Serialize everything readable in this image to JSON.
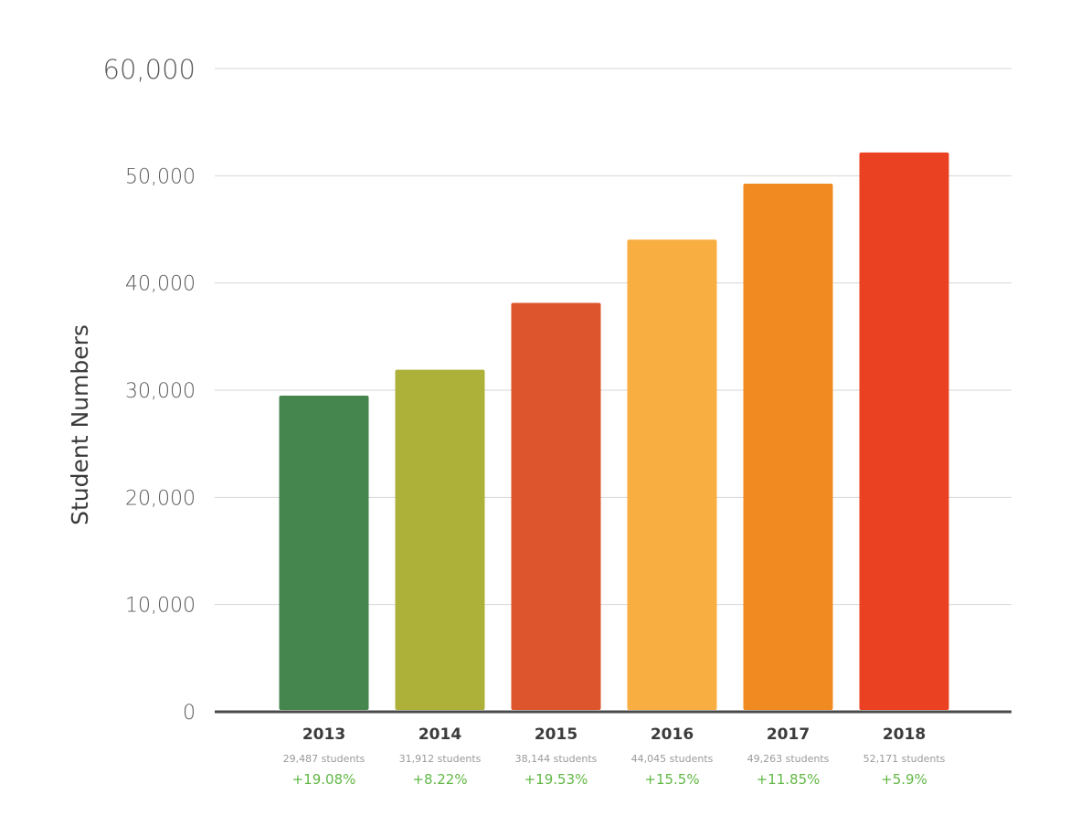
{
  "chart_data": {
    "type": "bar",
    "title": "",
    "xlabel": "",
    "ylabel": "Student Numbers",
    "ylim": [
      0,
      60000
    ],
    "yticks": [
      0,
      10000,
      20000,
      30000,
      40000,
      50000,
      60000
    ],
    "ytick_labels": [
      "0",
      "10,000",
      "20,000",
      "30,000",
      "40,000",
      "50,000",
      "60,000"
    ],
    "grid": true,
    "categories": [
      "2013",
      "2014",
      "2015",
      "2016",
      "2017",
      "2018"
    ],
    "values": [
      29487,
      31912,
      38144,
      44045,
      49263,
      52171
    ],
    "value_labels": [
      "29,487 students",
      "31,912 students",
      "38,144 students",
      "44,045 students",
      "49,263 students",
      "52,171 students"
    ],
    "growth_labels": [
      "+19.08%",
      "+8.22%",
      "+19.53%",
      "+15.5%",
      "+11.85%",
      "+5.9%"
    ],
    "bar_colors": [
      "#45864f",
      "#adb13a",
      "#dc552c",
      "#f9ae42",
      "#f18b21",
      "#ea4123"
    ],
    "growth_color": "#62b846"
  }
}
